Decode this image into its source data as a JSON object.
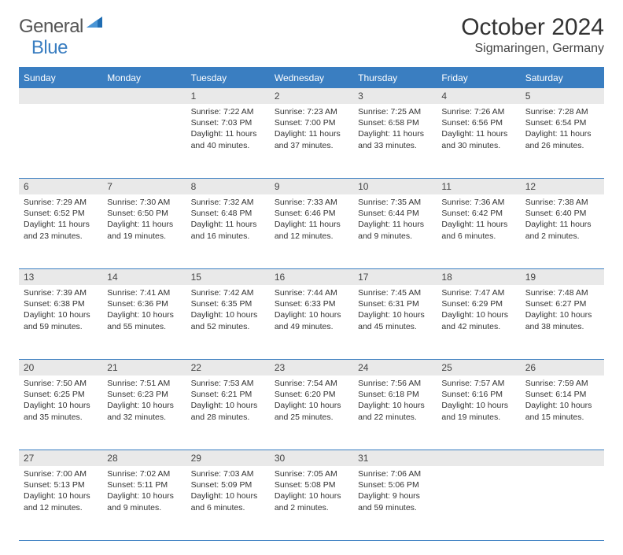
{
  "logo": {
    "text1": "General",
    "text2": "Blue",
    "icon_color": "#1f6db3"
  },
  "title": "October 2024",
  "location": "Sigmaringen, Germany",
  "colors": {
    "header_bg": "#3a7ec1",
    "header_text": "#ffffff",
    "daynum_bg": "#e9e9e9",
    "border": "#3a7ec1",
    "text": "#333333"
  },
  "day_headers": [
    "Sunday",
    "Monday",
    "Tuesday",
    "Wednesday",
    "Thursday",
    "Friday",
    "Saturday"
  ],
  "weeks": [
    [
      {
        "n": "",
        "rise": "",
        "set": "",
        "day": ""
      },
      {
        "n": "",
        "rise": "",
        "set": "",
        "day": ""
      },
      {
        "n": "1",
        "rise": "Sunrise: 7:22 AM",
        "set": "Sunset: 7:03 PM",
        "day": "Daylight: 11 hours and 40 minutes."
      },
      {
        "n": "2",
        "rise": "Sunrise: 7:23 AM",
        "set": "Sunset: 7:00 PM",
        "day": "Daylight: 11 hours and 37 minutes."
      },
      {
        "n": "3",
        "rise": "Sunrise: 7:25 AM",
        "set": "Sunset: 6:58 PM",
        "day": "Daylight: 11 hours and 33 minutes."
      },
      {
        "n": "4",
        "rise": "Sunrise: 7:26 AM",
        "set": "Sunset: 6:56 PM",
        "day": "Daylight: 11 hours and 30 minutes."
      },
      {
        "n": "5",
        "rise": "Sunrise: 7:28 AM",
        "set": "Sunset: 6:54 PM",
        "day": "Daylight: 11 hours and 26 minutes."
      }
    ],
    [
      {
        "n": "6",
        "rise": "Sunrise: 7:29 AM",
        "set": "Sunset: 6:52 PM",
        "day": "Daylight: 11 hours and 23 minutes."
      },
      {
        "n": "7",
        "rise": "Sunrise: 7:30 AM",
        "set": "Sunset: 6:50 PM",
        "day": "Daylight: 11 hours and 19 minutes."
      },
      {
        "n": "8",
        "rise": "Sunrise: 7:32 AM",
        "set": "Sunset: 6:48 PM",
        "day": "Daylight: 11 hours and 16 minutes."
      },
      {
        "n": "9",
        "rise": "Sunrise: 7:33 AM",
        "set": "Sunset: 6:46 PM",
        "day": "Daylight: 11 hours and 12 minutes."
      },
      {
        "n": "10",
        "rise": "Sunrise: 7:35 AM",
        "set": "Sunset: 6:44 PM",
        "day": "Daylight: 11 hours and 9 minutes."
      },
      {
        "n": "11",
        "rise": "Sunrise: 7:36 AM",
        "set": "Sunset: 6:42 PM",
        "day": "Daylight: 11 hours and 6 minutes."
      },
      {
        "n": "12",
        "rise": "Sunrise: 7:38 AM",
        "set": "Sunset: 6:40 PM",
        "day": "Daylight: 11 hours and 2 minutes."
      }
    ],
    [
      {
        "n": "13",
        "rise": "Sunrise: 7:39 AM",
        "set": "Sunset: 6:38 PM",
        "day": "Daylight: 10 hours and 59 minutes."
      },
      {
        "n": "14",
        "rise": "Sunrise: 7:41 AM",
        "set": "Sunset: 6:36 PM",
        "day": "Daylight: 10 hours and 55 minutes."
      },
      {
        "n": "15",
        "rise": "Sunrise: 7:42 AM",
        "set": "Sunset: 6:35 PM",
        "day": "Daylight: 10 hours and 52 minutes."
      },
      {
        "n": "16",
        "rise": "Sunrise: 7:44 AM",
        "set": "Sunset: 6:33 PM",
        "day": "Daylight: 10 hours and 49 minutes."
      },
      {
        "n": "17",
        "rise": "Sunrise: 7:45 AM",
        "set": "Sunset: 6:31 PM",
        "day": "Daylight: 10 hours and 45 minutes."
      },
      {
        "n": "18",
        "rise": "Sunrise: 7:47 AM",
        "set": "Sunset: 6:29 PM",
        "day": "Daylight: 10 hours and 42 minutes."
      },
      {
        "n": "19",
        "rise": "Sunrise: 7:48 AM",
        "set": "Sunset: 6:27 PM",
        "day": "Daylight: 10 hours and 38 minutes."
      }
    ],
    [
      {
        "n": "20",
        "rise": "Sunrise: 7:50 AM",
        "set": "Sunset: 6:25 PM",
        "day": "Daylight: 10 hours and 35 minutes."
      },
      {
        "n": "21",
        "rise": "Sunrise: 7:51 AM",
        "set": "Sunset: 6:23 PM",
        "day": "Daylight: 10 hours and 32 minutes."
      },
      {
        "n": "22",
        "rise": "Sunrise: 7:53 AM",
        "set": "Sunset: 6:21 PM",
        "day": "Daylight: 10 hours and 28 minutes."
      },
      {
        "n": "23",
        "rise": "Sunrise: 7:54 AM",
        "set": "Sunset: 6:20 PM",
        "day": "Daylight: 10 hours and 25 minutes."
      },
      {
        "n": "24",
        "rise": "Sunrise: 7:56 AM",
        "set": "Sunset: 6:18 PM",
        "day": "Daylight: 10 hours and 22 minutes."
      },
      {
        "n": "25",
        "rise": "Sunrise: 7:57 AM",
        "set": "Sunset: 6:16 PM",
        "day": "Daylight: 10 hours and 19 minutes."
      },
      {
        "n": "26",
        "rise": "Sunrise: 7:59 AM",
        "set": "Sunset: 6:14 PM",
        "day": "Daylight: 10 hours and 15 minutes."
      }
    ],
    [
      {
        "n": "27",
        "rise": "Sunrise: 7:00 AM",
        "set": "Sunset: 5:13 PM",
        "day": "Daylight: 10 hours and 12 minutes."
      },
      {
        "n": "28",
        "rise": "Sunrise: 7:02 AM",
        "set": "Sunset: 5:11 PM",
        "day": "Daylight: 10 hours and 9 minutes."
      },
      {
        "n": "29",
        "rise": "Sunrise: 7:03 AM",
        "set": "Sunset: 5:09 PM",
        "day": "Daylight: 10 hours and 6 minutes."
      },
      {
        "n": "30",
        "rise": "Sunrise: 7:05 AM",
        "set": "Sunset: 5:08 PM",
        "day": "Daylight: 10 hours and 2 minutes."
      },
      {
        "n": "31",
        "rise": "Sunrise: 7:06 AM",
        "set": "Sunset: 5:06 PM",
        "day": "Daylight: 9 hours and 59 minutes."
      },
      {
        "n": "",
        "rise": "",
        "set": "",
        "day": ""
      },
      {
        "n": "",
        "rise": "",
        "set": "",
        "day": ""
      }
    ]
  ]
}
